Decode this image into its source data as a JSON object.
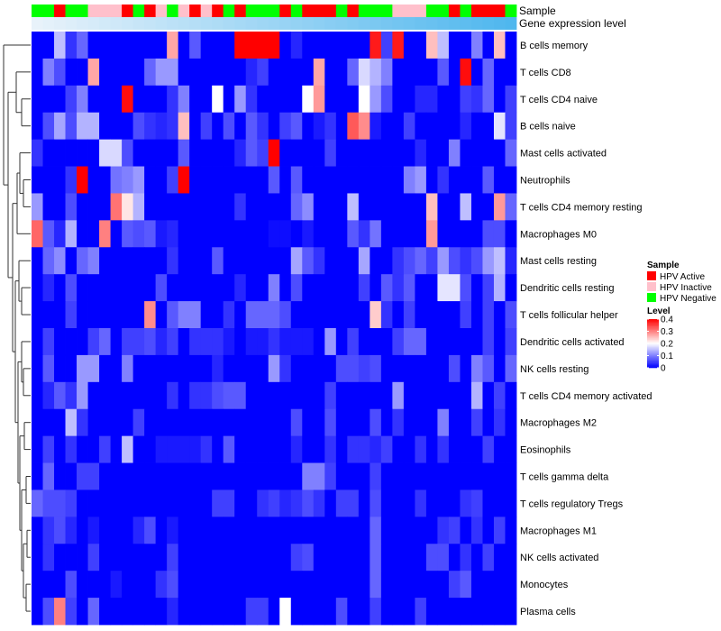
{
  "chart_data": {
    "type": "heatmap",
    "title": "",
    "annotation_labels": {
      "sample": "Sample",
      "gene_expression": "Gene expression level"
    },
    "rows": [
      "B cells memory",
      "T cells CD8",
      "T cells CD4 naive",
      "B cells naive",
      "Mast cells activated",
      "Neutrophils",
      "T cells CD4 memory resting",
      "Macrophages M0",
      "Mast cells resting",
      "Dendritic cells resting",
      "T cells follicular helper",
      "Dendritic cells activated",
      "NK cells resting",
      "T cells CD4 memory activated",
      "Macrophages M2",
      "Eosinophils",
      "T cells gamma delta",
      "T cells regulatory  Tregs",
      "Macrophages M1",
      "NK cells activated",
      "Monocytes",
      "Plasma cells"
    ],
    "sample_groups": [
      "Negative",
      "Negative",
      "Active",
      "Negative",
      "Negative",
      "Inactive",
      "Inactive",
      "Inactive",
      "Active",
      "Negative",
      "Active",
      "Inactive",
      "Negative",
      "Inactive",
      "Active",
      "Inactive",
      "Active",
      "Negative",
      "Active",
      "Negative",
      "Negative",
      "Negative",
      "Active",
      "Negative",
      "Active",
      "Active",
      "Active",
      "Negative",
      "Active",
      "Negative",
      "Negative",
      "Negative",
      "Inactive",
      "Inactive",
      "Inactive",
      "Negative",
      "Negative",
      "Active",
      "Negative",
      "Active",
      "Active",
      "Active",
      "Negative"
    ],
    "expression_levels": [
      0.02,
      0.04,
      0.06,
      0.08,
      0.1,
      0.12,
      0.14,
      0.16,
      0.18,
      0.2,
      0.22,
      0.24,
      0.26,
      0.28,
      0.3,
      0.32,
      0.34,
      0.36,
      0.38,
      0.4,
      0.42,
      0.44,
      0.46,
      0.48,
      0.5,
      0.52,
      0.54,
      0.56,
      0.58,
      0.6,
      0.62,
      0.64,
      0.66,
      0.68,
      0.7,
      0.72,
      0.74,
      0.76,
      0.78,
      0.8,
      0.82,
      0.84,
      0.86
    ],
    "values": [
      [
        0,
        0,
        0.15,
        0.04,
        0.08,
        0,
        0,
        0,
        0,
        0,
        0,
        0,
        0.27,
        0,
        0.07,
        0,
        0,
        0,
        0.4,
        0.4,
        0.4,
        0.4,
        0,
        0.03,
        0,
        0,
        0,
        0,
        0,
        0,
        0.38,
        0.05,
        0.38,
        0,
        0,
        0.25,
        0.15,
        0,
        0,
        0.1,
        0,
        0.25,
        0
      ],
      [
        0,
        0.1,
        0.06,
        0,
        0,
        0.27,
        0,
        0,
        0,
        0,
        0.08,
        0.12,
        0.12,
        0,
        0,
        0,
        0,
        0,
        0,
        0.03,
        0.05,
        0,
        0,
        0,
        0,
        0.27,
        0,
        0,
        0.08,
        0.17,
        0.14,
        0.1,
        0,
        0,
        0,
        0,
        0.07,
        0,
        0.39,
        0,
        0.08,
        0,
        0
      ],
      [
        0,
        0,
        0,
        0.05,
        0.1,
        0,
        0,
        0,
        0.39,
        0,
        0,
        0,
        0.04,
        0.1,
        0,
        0,
        0.2,
        0,
        0.12,
        0.04,
        0,
        0,
        0,
        0,
        0.2,
        0.28,
        0,
        0,
        0,
        0.2,
        0.12,
        0.06,
        0,
        0,
        0.03,
        0.03,
        0,
        0,
        0.05,
        0.04,
        0.08,
        0,
        0.05
      ],
      [
        0,
        0.06,
        0.13,
        0.06,
        0.14,
        0.14,
        0,
        0,
        0,
        0.06,
        0.04,
        0.03,
        0.04,
        0.25,
        0,
        0.05,
        0,
        0.06,
        0,
        0.07,
        0.04,
        0,
        0.05,
        0.07,
        0,
        0.02,
        0.04,
        0,
        0.33,
        0.29,
        0.02,
        0,
        0,
        0.05,
        0,
        0,
        0,
        0,
        0.03,
        0,
        0,
        0.18,
        0.05
      ],
      [
        0.04,
        0,
        0,
        0,
        0,
        0,
        0.17,
        0.17,
        0.06,
        0,
        0,
        0,
        0,
        0.07,
        0,
        0,
        0,
        0,
        0.03,
        0.07,
        0.05,
        0.41,
        0,
        0,
        0,
        0,
        0.05,
        0,
        0,
        0,
        0,
        0,
        0,
        0,
        0.03,
        0,
        0,
        0.1,
        0,
        0,
        0,
        0,
        0.08
      ],
      [
        0,
        0,
        0,
        0.04,
        0.41,
        0,
        0,
        0.09,
        0.1,
        0.12,
        0,
        0,
        0.05,
        0.4,
        0,
        0,
        0,
        0,
        0,
        0,
        0,
        0.07,
        0,
        0.07,
        0,
        0,
        0,
        0,
        0,
        0,
        0,
        0,
        0,
        0.1,
        0.12,
        0,
        0.04,
        0,
        0,
        0,
        0.07,
        0,
        0
      ],
      [
        0.12,
        0,
        0,
        0.06,
        0,
        0,
        0,
        0.31,
        0.22,
        0.14,
        0,
        0,
        0,
        0,
        0,
        0,
        0,
        0,
        0.04,
        0,
        0,
        0,
        0,
        0.08,
        0.11,
        0,
        0,
        0,
        0.15,
        0,
        0,
        0,
        0,
        0,
        0,
        0.25,
        0,
        0,
        0.15,
        0,
        0,
        0.28,
        0.08
      ],
      [
        0.32,
        0.07,
        0.03,
        0.14,
        0,
        0,
        0.3,
        0,
        0.07,
        0.06,
        0.07,
        0.02,
        0.03,
        0,
        0,
        0,
        0,
        0,
        0,
        0,
        0,
        0.01,
        0.01,
        0,
        0.02,
        0,
        0,
        0,
        0.07,
        0.04,
        0.09,
        0,
        0,
        0,
        0,
        0.28,
        0,
        0,
        0,
        0,
        0.06,
        0.06,
        0
      ],
      [
        0,
        0.08,
        0.11,
        0,
        0.08,
        0.1,
        0,
        0,
        0,
        0,
        0,
        0,
        0.04,
        0,
        0,
        0,
        0.07,
        0,
        0,
        0,
        0,
        0,
        0,
        0.13,
        0.07,
        0.04,
        0,
        0,
        0,
        0.13,
        0,
        0,
        0.04,
        0.06,
        0.08,
        0.05,
        0.12,
        0.06,
        0.04,
        0.06,
        0.12,
        0.15,
        0.03
      ],
      [
        0,
        0.03,
        0,
        0.06,
        0,
        0,
        0,
        0,
        0,
        0,
        0,
        0.06,
        0,
        0,
        0,
        0,
        0,
        0,
        0.03,
        0,
        0,
        0.1,
        0,
        0.06,
        0,
        0,
        0,
        0,
        0,
        0.05,
        0,
        0.07,
        0.04,
        0.07,
        0,
        0,
        0.18,
        0.18,
        0.06,
        0,
        0.05,
        0.14,
        0
      ],
      [
        0,
        0,
        0,
        0.05,
        0,
        0,
        0,
        0,
        0,
        0,
        0.29,
        0,
        0.07,
        0.1,
        0.1,
        0,
        0,
        0.04,
        0,
        0.08,
        0.08,
        0.08,
        0.06,
        0,
        0,
        0,
        0,
        0,
        0,
        0,
        0.24,
        0.04,
        0,
        0.05,
        0,
        0,
        0,
        0,
        0.05,
        0,
        0.05,
        0,
        0.06
      ],
      [
        0,
        0.05,
        0,
        0,
        0,
        0.05,
        0.08,
        0,
        0.05,
        0.05,
        0.06,
        0.03,
        0.05,
        0,
        0.04,
        0.04,
        0.04,
        0.02,
        0,
        0.02,
        0.02,
        0.04,
        0.02,
        0.02,
        0.02,
        0,
        0.12,
        0,
        0.05,
        0,
        0,
        0,
        0.05,
        0.08,
        0.08,
        0,
        0,
        0,
        0,
        0,
        0.05,
        0,
        0.05
      ],
      [
        0,
        0.07,
        0,
        0,
        0.12,
        0.12,
        0,
        0,
        0.1,
        0,
        0,
        0,
        0,
        0,
        0,
        0,
        0.03,
        0,
        0,
        0,
        0,
        0.12,
        0.04,
        0,
        0,
        0,
        0,
        0.06,
        0.06,
        0.05,
        0.06,
        0,
        0,
        0,
        0,
        0,
        0,
        0.06,
        0,
        0.1,
        0.07,
        0,
        0.08
      ],
      [
        0,
        0.03,
        0.07,
        0.04,
        0.12,
        0,
        0,
        0,
        0,
        0,
        0,
        0,
        0.04,
        0,
        0.04,
        0.04,
        0.06,
        0.07,
        0.07,
        0,
        0,
        0,
        0,
        0,
        0,
        0,
        0.05,
        0,
        0,
        0,
        0,
        0,
        0.12,
        0,
        0,
        0,
        0,
        0,
        0,
        0.14,
        0,
        0.05,
        0
      ],
      [
        0,
        0,
        0,
        0.15,
        0.04,
        0,
        0,
        0,
        0,
        0.05,
        0,
        0,
        0,
        0,
        0,
        0,
        0,
        0,
        0,
        0,
        0,
        0,
        0,
        0.06,
        0,
        0,
        0.06,
        0,
        0,
        0,
        0.06,
        0,
        0.04,
        0,
        0,
        0,
        0.1,
        0,
        0,
        0.05,
        0,
        0.04,
        0
      ],
      [
        0,
        0.05,
        0,
        0.04,
        0,
        0,
        0.05,
        0,
        0.15,
        0,
        0,
        0.02,
        0.02,
        0.02,
        0.02,
        0.04,
        0,
        0.07,
        0,
        0,
        0,
        0,
        0,
        0.03,
        0,
        0,
        0.04,
        0,
        0.04,
        0.04,
        0.03,
        0.05,
        0,
        0,
        0.04,
        0,
        0.04,
        0,
        0,
        0,
        0.05,
        0,
        0
      ],
      [
        0,
        0.08,
        0,
        0,
        0.05,
        0.05,
        0,
        0,
        0,
        0,
        0,
        0,
        0,
        0,
        0,
        0,
        0,
        0,
        0,
        0,
        0,
        0,
        0,
        0,
        0.1,
        0.1,
        0.05,
        0,
        0,
        0,
        0.05,
        0,
        0,
        0,
        0,
        0,
        0,
        0,
        0,
        0,
        0,
        0,
        0
      ],
      [
        0.08,
        0.06,
        0.06,
        0.05,
        0,
        0,
        0,
        0,
        0,
        0,
        0,
        0,
        0,
        0,
        0,
        0,
        0.05,
        0.05,
        0,
        0,
        0.04,
        0.05,
        0.03,
        0.04,
        0.06,
        0.04,
        0,
        0.05,
        0.05,
        0,
        0.06,
        0,
        0,
        0,
        0.04,
        0,
        0,
        0,
        0.04,
        0.05,
        0,
        0,
        0
      ],
      [
        0,
        0.04,
        0.06,
        0.03,
        0,
        0.02,
        0,
        0,
        0,
        0.03,
        0.06,
        0,
        0.02,
        0,
        0,
        0,
        0,
        0,
        0,
        0,
        0,
        0,
        0,
        0,
        0,
        0,
        0,
        0,
        0,
        0,
        0.08,
        0,
        0,
        0,
        0,
        0,
        0.04,
        0.05,
        0,
        0.04,
        0,
        0.05,
        0
      ],
      [
        0,
        0.04,
        0,
        0,
        0,
        0.05,
        0,
        0,
        0,
        0,
        0,
        0,
        0.05,
        0,
        0,
        0,
        0,
        0,
        0,
        0,
        0,
        0,
        0,
        0.05,
        0.06,
        0,
        0,
        0,
        0,
        0,
        0.08,
        0,
        0,
        0,
        0,
        0.06,
        0.06,
        0,
        0.04,
        0,
        0.05,
        0,
        0
      ],
      [
        0,
        0,
        0,
        0.06,
        0,
        0,
        0,
        0.02,
        0,
        0,
        0,
        0.04,
        0.06,
        0,
        0,
        0,
        0,
        0,
        0,
        0,
        0,
        0,
        0,
        0,
        0,
        0,
        0,
        0,
        0,
        0,
        0.08,
        0,
        0,
        0,
        0,
        0,
        0,
        0.05,
        0.07,
        0,
        0,
        0,
        0
      ],
      [
        0,
        0.06,
        0.3,
        0.05,
        0,
        0.08,
        0,
        0,
        0,
        0,
        0,
        0,
        0.03,
        0,
        0,
        0,
        0,
        0,
        0,
        0.05,
        0.05,
        0,
        0.2,
        0,
        0,
        0,
        0,
        0.06,
        0,
        0,
        0.05,
        0,
        0,
        0,
        0.05,
        0,
        0,
        0,
        0,
        0,
        0,
        0,
        0
      ]
    ],
    "color_scale": {
      "min": 0,
      "mid": 0.2,
      "max": 0.4,
      "low_color": "#0000ff",
      "mid_color": "#ffffff",
      "high_color": "#ff0000"
    },
    "group_colors": {
      "Active": "#ff0000",
      "Inactive": "#ffc0cb",
      "Negative": "#00ff00"
    },
    "gene_expression_colors": {
      "low": "#e8f2fa",
      "high": "#4fb7ee"
    },
    "legend_sample": {
      "title": "Sample",
      "entries": [
        {
          "label": "HPV Active",
          "group": "Active"
        },
        {
          "label": "HPV Inactive",
          "group": "Inactive"
        },
        {
          "label": "HPV Negative",
          "group": "Negative"
        }
      ]
    },
    "legend_level": {
      "title": "Level",
      "ticks": [
        "0.4",
        "0.3",
        "0.2",
        "0.1",
        "0"
      ],
      "tick_values": [
        0.4,
        0.3,
        0.2,
        0.1,
        0
      ]
    },
    "legend_placement": "right",
    "row_dendrogram": true,
    "grid": false
  }
}
